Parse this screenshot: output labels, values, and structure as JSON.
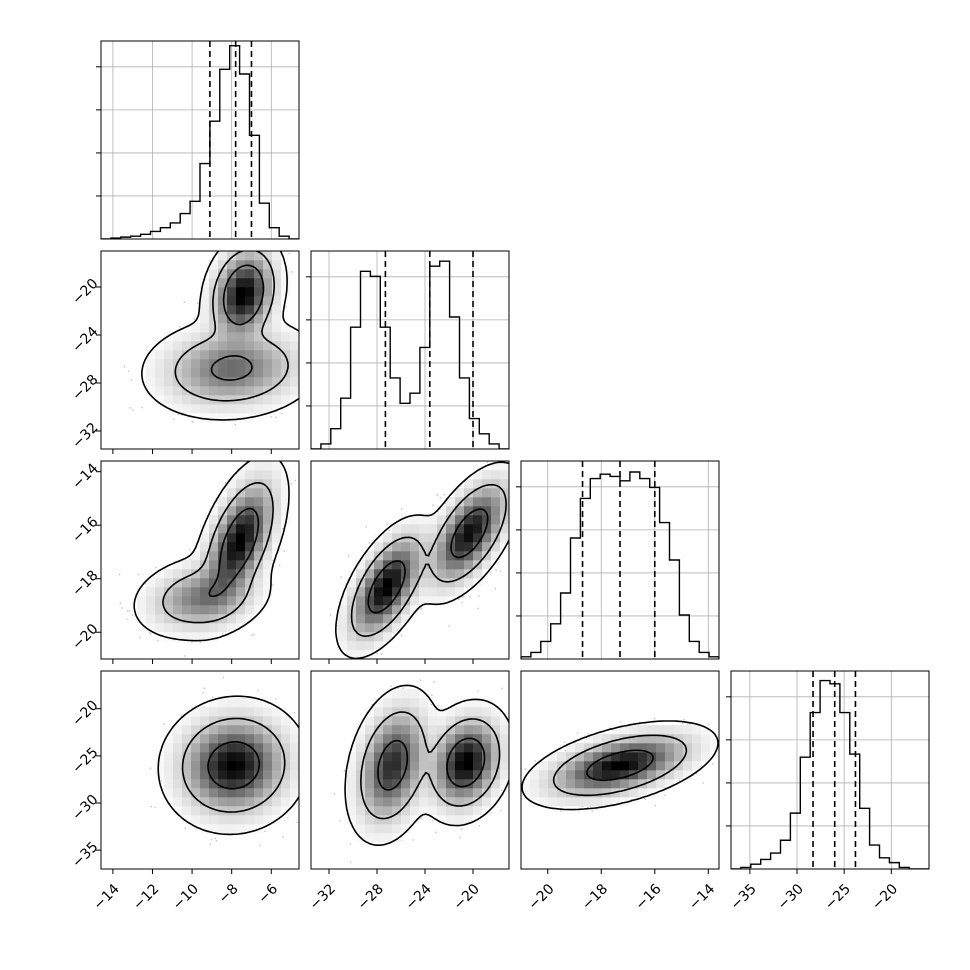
{
  "chart_data": {
    "type": "corner",
    "title": "",
    "parameters": [
      {
        "range": [
          -14.6,
          -4.6
        ],
        "ticks": [
          -14,
          -12,
          -10,
          -8,
          -6
        ],
        "tick_labels": [
          "−14",
          "−12",
          "−10",
          "−8",
          "−6"
        ],
        "quantiles": [
          -9.1,
          -7.8,
          -7.0
        ]
      },
      {
        "range": [
          -33.5,
          -17.0
        ],
        "ticks": [
          -32,
          -28,
          -24,
          -20
        ],
        "tick_labels": [
          "−32",
          "−28",
          "−24",
          "−20"
        ],
        "quantiles": [
          -27.3,
          -23.6,
          -20.0
        ]
      },
      {
        "range": [
          -21.0,
          -13.6
        ],
        "ticks": [
          -20,
          -18,
          -16,
          -14
        ],
        "tick_labels": [
          "−20",
          "−18",
          "−16",
          "−14"
        ],
        "quantiles": [
          -18.7,
          -17.3,
          -16.0
        ]
      },
      {
        "range": [
          -37.0,
          -16.0
        ],
        "ticks": [
          -35,
          -30,
          -25,
          -20
        ],
        "tick_labels": [
          "−35",
          "−30",
          "−25",
          "−20"
        ],
        "quantiles": [
          -28.3,
          -26.0,
          -23.8
        ]
      }
    ],
    "histograms": [
      {
        "edges_start": -14.6,
        "bin_width": 0.5,
        "counts": [
          0,
          1,
          2,
          3,
          5,
          8,
          12,
          17,
          27,
          40,
          80,
          125,
          180,
          205,
          175,
          110,
          38,
          12,
          3,
          0
        ]
      },
      {
        "edges_start": -33.5,
        "bin_width": 0.825,
        "counts": [
          0,
          2,
          8,
          20,
          48,
          70,
          68,
          48,
          28,
          18,
          22,
          40,
          72,
          74,
          52,
          28,
          12,
          6,
          2,
          0
        ]
      },
      {
        "edges_start": -21.0,
        "bin_width": 0.37,
        "counts": [
          1,
          3,
          8,
          16,
          30,
          55,
          73,
          82,
          84,
          83,
          81,
          85,
          82,
          78,
          62,
          45,
          20,
          8,
          3,
          1
        ]
      },
      {
        "edges_start": -37.0,
        "bin_width": 1.05,
        "counts": [
          0,
          1,
          3,
          6,
          10,
          18,
          35,
          70,
          98,
          118,
          116,
          98,
          72,
          38,
          15,
          7,
          4,
          1,
          0,
          0
        ]
      }
    ],
    "hist_ymax": [
      210,
      78,
      90,
      124
    ],
    "pairs": [
      {
        "x": 0,
        "y": 1,
        "modes": [
          {
            "mx": -7.4,
            "my": -20.6,
            "sx": 0.75,
            "sy": 1.8,
            "r": 0.2,
            "w": 0.5
          },
          {
            "mx": -8.0,
            "my": -26.8,
            "sx": 1.7,
            "sy": 1.6,
            "r": 0.1,
            "w": 0.5
          }
        ]
      },
      {
        "x": 0,
        "y": 2,
        "modes": [
          {
            "mx": -7.6,
            "my": -16.6,
            "sx": 0.85,
            "sy": 1.1,
            "r": 0.55,
            "w": 0.7
          },
          {
            "mx": -9.5,
            "my": -18.7,
            "sx": 1.3,
            "sy": 0.6,
            "r": 0.2,
            "w": 0.3
          }
        ]
      },
      {
        "x": 0,
        "y": 3,
        "modes": [
          {
            "mx": -7.9,
            "my": -26.0,
            "sx": 1.3,
            "sy": 2.5,
            "r": 0.05,
            "w": 1.0
          }
        ]
      },
      {
        "x": 1,
        "y": 2,
        "modes": [
          {
            "mx": -27.2,
            "my": -18.3,
            "sx": 1.5,
            "sy": 0.95,
            "r": 0.6,
            "w": 0.5
          },
          {
            "mx": -20.3,
            "my": -16.3,
            "sx": 1.6,
            "sy": 0.95,
            "r": 0.6,
            "w": 0.5
          }
        ]
      },
      {
        "x": 1,
        "y": 3,
        "modes": [
          {
            "mx": -26.7,
            "my": -26.0,
            "sx": 1.4,
            "sy": 3.0,
            "r": 0.3,
            "w": 0.5
          },
          {
            "mx": -20.6,
            "my": -25.7,
            "sx": 1.4,
            "sy": 2.3,
            "r": 0.2,
            "w": 0.5
          }
        ]
      },
      {
        "x": 2,
        "y": 3,
        "modes": [
          {
            "mx": -17.3,
            "my": -26.0,
            "sx": 1.25,
            "sy": 1.6,
            "r": 0.5,
            "w": 1.0
          }
        ]
      }
    ],
    "contour_levels": [
      0.393,
      0.865,
      0.989
    ],
    "grid": true,
    "legend": "none"
  }
}
